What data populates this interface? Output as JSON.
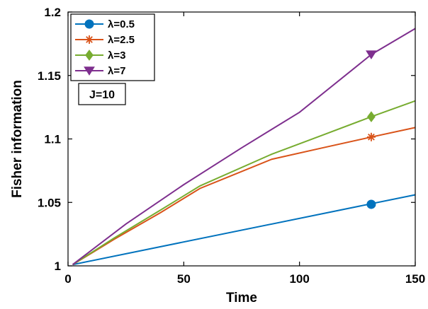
{
  "chart_data": {
    "type": "line",
    "xlabel": "Time",
    "ylabel": "Fisher information",
    "xlim": [
      0,
      150
    ],
    "ylim": [
      1,
      1.2
    ],
    "xticks": [
      0,
      50,
      100,
      150
    ],
    "xtick_labels": [
      "0",
      "50",
      "100",
      "150"
    ],
    "yticks": [
      1,
      1.05,
      1.1,
      1.15,
      1.2
    ],
    "ytick_labels": [
      "1",
      "1.05",
      "1.1",
      "1.15",
      "1.2"
    ],
    "grid": false,
    "legend_position": "top-left",
    "annotation": "J=10",
    "series": [
      {
        "name": "λ=0.5",
        "color": "#0072BD",
        "marker": "circle",
        "marker_at": [
          131,
          1.0485
        ],
        "x": [
          2,
          150
        ],
        "y": [
          1.001,
          1.056
        ]
      },
      {
        "name": "λ=2.5",
        "color": "#D95319",
        "marker": "asterisk",
        "marker_at": [
          131,
          1.1015
        ],
        "x": [
          2,
          20,
          40,
          57,
          88,
          110,
          131,
          150
        ],
        "y": [
          1.001,
          1.021,
          1.042,
          1.061,
          1.084,
          1.093,
          1.1015,
          1.109
        ]
      },
      {
        "name": "λ=3",
        "color": "#77AC30",
        "marker": "diamond",
        "marker_at": [
          131,
          1.1175
        ],
        "x": [
          2,
          20,
          40,
          57,
          88,
          110,
          131,
          150
        ],
        "y": [
          1.001,
          1.022,
          1.044,
          1.063,
          1.088,
          1.103,
          1.1175,
          1.13
        ]
      },
      {
        "name": "λ=7",
        "color": "#7E2F8E",
        "marker": "triangle-down",
        "marker_at": [
          131,
          1.1665
        ],
        "x": [
          2,
          25,
          50,
          75,
          100,
          131,
          150
        ],
        "y": [
          1.001,
          1.033,
          1.064,
          1.093,
          1.121,
          1.1665,
          1.187
        ]
      }
    ]
  }
}
